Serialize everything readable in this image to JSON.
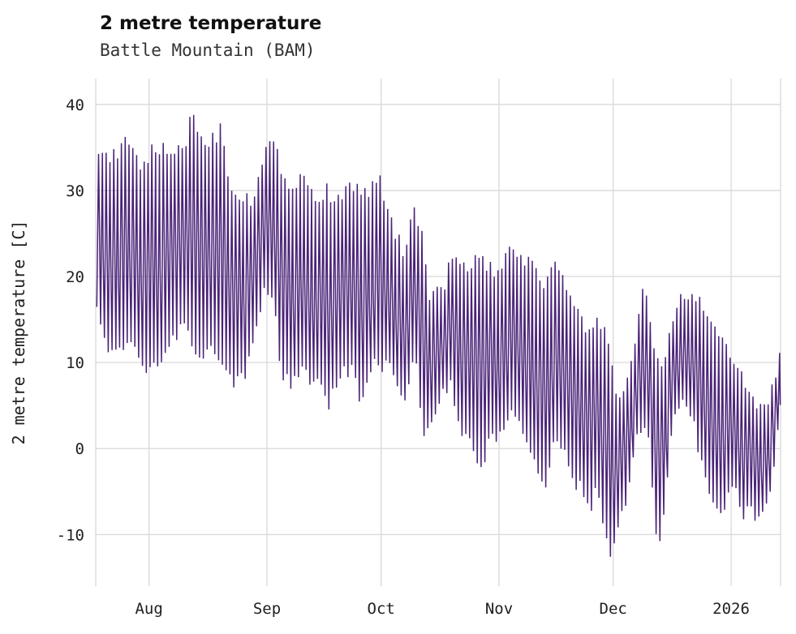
{
  "chart": {
    "title": "2 metre temperature",
    "subtitle": "Battle Mountain (BAM)"
  },
  "colors": {
    "line": "#4a2377",
    "grid": "#d8d8d8",
    "text": "#202020"
  },
  "chart_data": {
    "type": "line",
    "title": "2 metre temperature",
    "subtitle": "Battle Mountain (BAM)",
    "ylabel": "2 metre temperature [C]",
    "xlabel": "",
    "ylim": [
      -16,
      43
    ],
    "yticks": [
      -10,
      0,
      10,
      20,
      30,
      40
    ],
    "x_span_days": 180,
    "xticks": [
      {
        "label": "Aug",
        "day": 14
      },
      {
        "label": "Sep",
        "day": 45
      },
      {
        "label": "Oct",
        "day": 75
      },
      {
        "label": "Nov",
        "day": 106
      },
      {
        "label": "Dec",
        "day": 136
      },
      {
        "label": "2026",
        "day": 167
      }
    ],
    "legend": [],
    "grid": true,
    "series_note": "Dense hourly 2 m temperature trace with diurnal cycles over ~180 days (mid-July to mid-January 2026); represented here by daily high/low envelopes read from the plot.",
    "daily_high_envelope": [
      [
        0,
        35.5
      ],
      [
        4,
        33.5
      ],
      [
        8,
        35.5
      ],
      [
        12,
        33
      ],
      [
        16,
        35
      ],
      [
        20,
        34
      ],
      [
        24,
        36
      ],
      [
        25,
        40
      ],
      [
        26,
        37.5
      ],
      [
        29,
        35.5
      ],
      [
        32,
        36.5
      ],
      [
        33,
        38
      ],
      [
        35,
        31
      ],
      [
        38,
        29.5
      ],
      [
        41,
        29
      ],
      [
        44,
        33.5
      ],
      [
        46,
        36
      ],
      [
        49,
        32.5
      ],
      [
        52,
        30
      ],
      [
        55,
        32.5
      ],
      [
        58,
        28.5
      ],
      [
        61,
        30
      ],
      [
        64,
        28.5
      ],
      [
        67,
        31
      ],
      [
        70,
        29.5
      ],
      [
        73,
        30.5
      ],
      [
        75,
        31
      ],
      [
        78,
        25.5
      ],
      [
        81,
        23
      ],
      [
        84,
        28.5
      ],
      [
        86,
        24
      ],
      [
        88,
        17
      ],
      [
        91,
        18.5
      ],
      [
        94,
        22.5
      ],
      [
        97,
        20.5
      ],
      [
        100,
        22.5
      ],
      [
        103,
        21
      ],
      [
        106,
        20
      ],
      [
        109,
        23
      ],
      [
        112,
        22.5
      ],
      [
        115,
        21
      ],
      [
        118,
        19
      ],
      [
        121,
        22
      ],
      [
        124,
        18
      ],
      [
        127,
        15
      ],
      [
        130,
        13.5
      ],
      [
        133,
        15
      ],
      [
        135,
        12
      ],
      [
        137,
        5.5
      ],
      [
        139,
        7
      ],
      [
        142,
        13
      ],
      [
        144,
        20
      ],
      [
        146,
        13
      ],
      [
        148,
        9
      ],
      [
        151,
        13
      ],
      [
        153,
        17.5
      ],
      [
        156,
        17.5
      ],
      [
        158,
        18
      ],
      [
        160,
        15
      ],
      [
        162,
        14.5
      ],
      [
        164,
        12.5
      ],
      [
        166,
        11.5
      ],
      [
        168,
        10
      ],
      [
        170,
        8
      ],
      [
        172,
        6.5
      ],
      [
        174,
        5
      ],
      [
        176,
        4.5
      ],
      [
        178,
        7
      ],
      [
        180,
        12
      ]
    ],
    "daily_low_envelope": [
      [
        0,
        16
      ],
      [
        3,
        12
      ],
      [
        6,
        10.5
      ],
      [
        9,
        13
      ],
      [
        12,
        10
      ],
      [
        15,
        9.5
      ],
      [
        18,
        10
      ],
      [
        21,
        13
      ],
      [
        24,
        15
      ],
      [
        27,
        9.5
      ],
      [
        30,
        13
      ],
      [
        33,
        10.5
      ],
      [
        36,
        8
      ],
      [
        39,
        8.5
      ],
      [
        42,
        14
      ],
      [
        45,
        19
      ],
      [
        47,
        16
      ],
      [
        49,
        8
      ],
      [
        52,
        7.5
      ],
      [
        55,
        9
      ],
      [
        58,
        7.5
      ],
      [
        61,
        5
      ],
      [
        64,
        8.5
      ],
      [
        67,
        9.5
      ],
      [
        70,
        5
      ],
      [
        73,
        9.5
      ],
      [
        76,
        10
      ],
      [
        79,
        8
      ],
      [
        81,
        5
      ],
      [
        84,
        11
      ],
      [
        86,
        0.5
      ],
      [
        88,
        3
      ],
      [
        90,
        5
      ],
      [
        93,
        8
      ],
      [
        96,
        2.5
      ],
      [
        99,
        0
      ],
      [
        102,
        -2.5
      ],
      [
        104,
        2
      ],
      [
        106,
        1
      ],
      [
        109,
        5
      ],
      [
        112,
        2
      ],
      [
        115,
        -1
      ],
      [
        118,
        -5
      ],
      [
        121,
        2
      ],
      [
        124,
        -2
      ],
      [
        127,
        -4.5
      ],
      [
        130,
        -6.5
      ],
      [
        132,
        -5
      ],
      [
        135,
        -12.5
      ],
      [
        137,
        -9.5
      ],
      [
        139,
        -7
      ],
      [
        141,
        -1
      ],
      [
        143,
        2
      ],
      [
        145,
        3
      ],
      [
        147,
        -9.5
      ],
      [
        149,
        -10
      ],
      [
        151,
        1
      ],
      [
        153,
        5
      ],
      [
        156,
        4.5
      ],
      [
        158,
        1
      ],
      [
        160,
        -4
      ],
      [
        162,
        -5.5
      ],
      [
        164,
        -8.5
      ],
      [
        166,
        -6
      ],
      [
        168,
        -5
      ],
      [
        170,
        -9
      ],
      [
        172,
        -6.5
      ],
      [
        174,
        -8.5
      ],
      [
        176,
        -6.5
      ],
      [
        178,
        -4
      ],
      [
        180,
        6
      ]
    ]
  }
}
